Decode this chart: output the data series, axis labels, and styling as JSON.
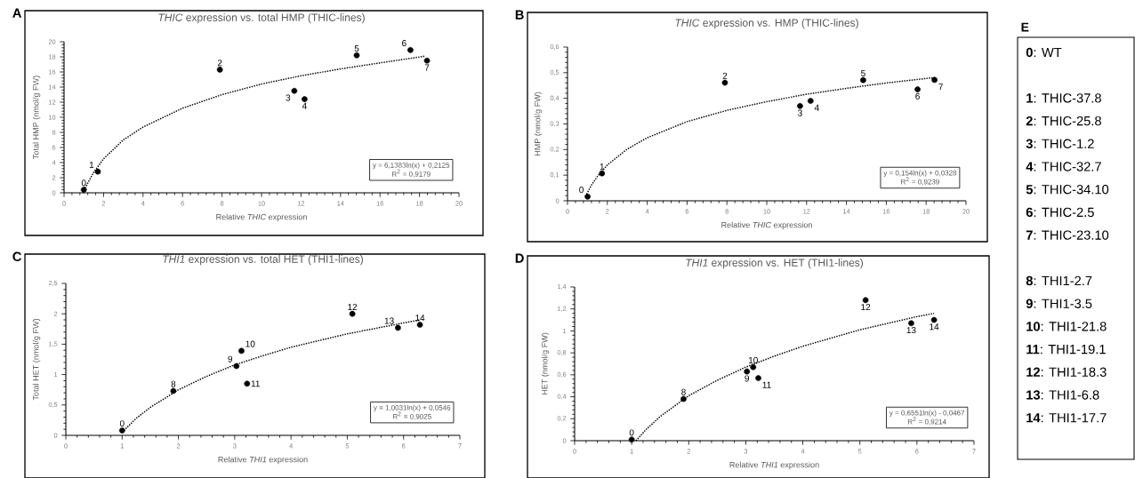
{
  "chart_data": [
    {
      "type": "scatter",
      "title": "*THIC* expression vs. total HMP (THIC-lines)",
      "xlabel": "Relative *THIC* expression",
      "ylabel": "Total HMP (nmol/g FW)",
      "xlim": [
        0,
        20
      ],
      "ylim": [
        0,
        20
      ],
      "xticks": [
        0,
        2,
        4,
        6,
        8,
        10,
        12,
        14,
        16,
        18,
        20
      ],
      "yticks": [
        0,
        2,
        4,
        6,
        8,
        10,
        12,
        14,
        16,
        18,
        20
      ],
      "series": [
        {
          "type": "scatter",
          "color": "#000000",
          "marker": "circle",
          "x": [
            1.0,
            1.71,
            7.89,
            11.66,
            12.18,
            14.82,
            17.54,
            18.38
          ],
          "values": [
            0.4,
            2.8,
            16.3,
            13.5,
            12.4,
            18.2,
            18.9,
            17.5
          ]
        },
        {
          "type": "line",
          "color": "#000000",
          "marker": "none",
          "line_style": "dotted",
          "x": [
            0.97,
            1.2,
            1.5,
            2,
            3,
            4,
            6,
            8,
            10,
            12,
            14,
            16,
            18.3
          ],
          "values": [
            0.0,
            1.3,
            2.7,
            4.5,
            7.0,
            8.7,
            11.2,
            13.0,
            14.4,
            15.5,
            16.4,
            17.2,
            18.1
          ]
        }
      ],
      "annotations": [
        "A",
        {
          "text": "0",
          "x": 1.0,
          "y": 0.4
        },
        {
          "text": "1",
          "x": 1.71,
          "y": 2.8
        },
        {
          "text": "2",
          "x": 7.89,
          "y": 16.3
        },
        {
          "text": "3",
          "x": 11.66,
          "y": 13.5
        },
        {
          "text": "4",
          "x": 12.18,
          "y": 12.4
        },
        {
          "text": "5",
          "x": 14.82,
          "y": 18.2
        },
        {
          "text": "6",
          "x": 17.54,
          "y": 18.9
        },
        {
          "text": "7",
          "x": 18.38,
          "y": 17.5
        },
        "y = 6,1383ln(x) + 0,2125",
        "R$^{2}$ = 0,9179"
      ]
    },
    {
      "type": "scatter",
      "title": "*THIC* expression vs.  HMP (THIC-lines)",
      "xlabel": "Relative *THIC* expression",
      "ylabel": "HMP (nmol/g FW)",
      "xlim": [
        0,
        20
      ],
      "ylim": [
        0,
        0.6
      ],
      "xticks": [
        0,
        2,
        4,
        6,
        8,
        10,
        12,
        14,
        16,
        18,
        20
      ],
      "yticks": [
        0,
        {
          "value": 0.1,
          "label": "0,1"
        },
        {
          "value": 0.2,
          "label": "0,2"
        },
        {
          "value": 0.3,
          "label": "0,3"
        },
        {
          "value": 0.4,
          "label": "0,4"
        },
        {
          "value": 0.5,
          "label": "0,5"
        },
        {
          "value": 0.6,
          "label": "0,6"
        }
      ],
      "series": [
        {
          "type": "scatter",
          "color": "#000000",
          "marker": "circle",
          "x": [
            1.01,
            1.73,
            7.9,
            11.67,
            12.2,
            14.84,
            17.57,
            18.42
          ],
          "values": [
            0.016,
            0.107,
            0.461,
            0.37,
            0.39,
            0.471,
            0.435,
            0.472
          ]
        },
        {
          "type": "line",
          "color": "#000000",
          "marker": "none",
          "line_style": "dotted",
          "x": [
            0.9,
            1.2,
            1.5,
            2,
            3,
            4,
            6,
            8,
            10,
            12,
            14,
            16,
            18.4
          ],
          "values": [
            0.017,
            0.061,
            0.095,
            0.14,
            0.202,
            0.246,
            0.309,
            0.353,
            0.387,
            0.416,
            0.439,
            0.46,
            0.481
          ]
        }
      ],
      "annotations": [
        "B",
        {
          "text": "0",
          "x": 1.01,
          "y": 0.016
        },
        {
          "text": "1",
          "x": 1.73,
          "y": 0.107
        },
        {
          "text": "2",
          "x": 7.9,
          "y": 0.461
        },
        {
          "text": "3",
          "x": 11.67,
          "y": 0.37
        },
        {
          "text": "4",
          "x": 12.2,
          "y": 0.39
        },
        {
          "text": "5",
          "x": 14.84,
          "y": 0.471
        },
        {
          "text": "6",
          "x": 17.57,
          "y": 0.435
        },
        {
          "text": "7",
          "x": 18.42,
          "y": 0.472
        },
        "y = 0,154ln(x) + 0,0328",
        "R$^{2}$ = 0,9239"
      ]
    },
    {
      "type": "scatter",
      "title": "*THI1* expression vs. total HET (THI1-lines)",
      "xlabel": "Relative *THI1* expression",
      "ylabel": "Total HET (nmol/g FW)",
      "xlim": [
        0,
        7
      ],
      "ylim": [
        0,
        2.5
      ],
      "xticks": [
        0,
        1,
        2,
        3,
        4,
        5,
        6,
        7
      ],
      "yticks": [
        0,
        {
          "value": 0.5,
          "label": "0,5"
        },
        1,
        {
          "value": 1.5,
          "label": "1,5"
        },
        2,
        {
          "value": 2.5,
          "label": "2,5"
        }
      ],
      "series": [
        {
          "type": "scatter",
          "color": "#000000",
          "marker": "circle",
          "x": [
            1.0,
            1.91,
            3.03,
            3.12,
            3.22,
            5.09,
            5.9,
            6.29
          ],
          "values": [
            0.08,
            0.73,
            1.14,
            1.39,
            0.85,
            2.0,
            1.77,
            1.82
          ]
        },
        {
          "type": "line",
          "color": "#000000",
          "marker": "none",
          "line_style": "dotted",
          "x": [
            1,
            1.25,
            1.5,
            2,
            2.5,
            3,
            3.5,
            4,
            5,
            6,
            6.3
          ],
          "values": [
            0.05,
            0.28,
            0.46,
            0.75,
            0.97,
            1.16,
            1.31,
            1.45,
            1.67,
            1.85,
            1.9
          ]
        }
      ],
      "annotations": [
        "C",
        {
          "text": "0",
          "x": 1.0,
          "y": 0.08
        },
        {
          "text": "8",
          "x": 1.91,
          "y": 0.73
        },
        {
          "text": "9",
          "x": 3.03,
          "y": 1.14
        },
        {
          "text": "10",
          "x": 3.12,
          "y": 1.39
        },
        {
          "text": "11",
          "x": 3.22,
          "y": 0.85
        },
        {
          "text": "12",
          "x": 5.09,
          "y": 2.0
        },
        {
          "text": "13",
          "x": 5.9,
          "y": 1.77
        },
        {
          "text": "14",
          "x": 6.29,
          "y": 1.82
        },
        "y = 1,0031ln(x) + 0,0546",
        "R$^{2}$ = 0,9025"
      ]
    },
    {
      "type": "scatter",
      "title": "*THI1* expression vs. HET (THI1-lines)",
      "xlabel": "Relative *THI1* expression",
      "ylabel": "HET (nmol/g FW)",
      "xlim": [
        0,
        7
      ],
      "ylim": [
        0,
        1.4
      ],
      "xticks": [
        0,
        1,
        2,
        3,
        4,
        5,
        6,
        7
      ],
      "yticks": [
        0,
        {
          "value": 0.2,
          "label": "0,2"
        },
        {
          "value": 0.4,
          "label": "0,4"
        },
        {
          "value": 0.6,
          "label": "0,6"
        },
        {
          "value": 0.8,
          "label": "0,8"
        },
        1,
        {
          "value": 1.2,
          "label": "1,2"
        },
        {
          "value": 1.4,
          "label": "1,4"
        }
      ],
      "series": [
        {
          "type": "scatter",
          "color": "#000000",
          "marker": "circle",
          "x": [
            1.0,
            1.91,
            3.02,
            3.13,
            3.22,
            5.1,
            5.9,
            6.3
          ],
          "values": [
            0.01,
            0.38,
            0.63,
            0.67,
            0.57,
            1.28,
            1.07,
            1.1
          ]
        },
        {
          "type": "line",
          "color": "#000000",
          "marker": "none",
          "line_style": "dotted",
          "x": [
            1.075,
            1.25,
            1.5,
            2,
            2.5,
            3,
            3.5,
            4,
            5,
            6,
            6.3
          ],
          "values": [
            0.0,
            0.1,
            0.22,
            0.41,
            0.55,
            0.67,
            0.77,
            0.86,
            1.01,
            1.13,
            1.16
          ]
        }
      ],
      "annotations": [
        "D",
        {
          "text": "0",
          "x": 1.0,
          "y": 0.01
        },
        {
          "text": "8",
          "x": 1.91,
          "y": 0.38
        },
        {
          "text": "9",
          "x": 3.02,
          "y": 0.63
        },
        {
          "text": "10",
          "x": 3.13,
          "y": 0.67
        },
        {
          "text": "11",
          "x": 3.22,
          "y": 0.57
        },
        {
          "text": "12",
          "x": 5.1,
          "y": 1.28
        },
        {
          "text": "13",
          "x": 5.9,
          "y": 1.07
        },
        {
          "text": "14",
          "x": 6.3,
          "y": 1.1
        },
        "y = 0,6551ln(x) - 0,0467",
        "R$^{2}$ = 0,9214"
      ]
    },
    {
      "type": "other",
      "title": "E",
      "annotations": [
        "**0**: WT",
        "**1**: THIC-37.8",
        "**2**: THIC-25.8",
        "**3**: THIC-1.2",
        "**4**: THIC-32.7",
        "**5**: THIC-34.10",
        "**6**: THIC-2.5",
        "**7**: THIC-23.10",
        "**8**: THI1-2.7",
        "**9**: THI1-3.5",
        "**10**: THI1-21.8",
        "**11**: THI1-19.1",
        "**12**: THI1-18.3",
        "**13**: THI1-6.8",
        "**14**: THI1-17.7"
      ]
    }
  ]
}
